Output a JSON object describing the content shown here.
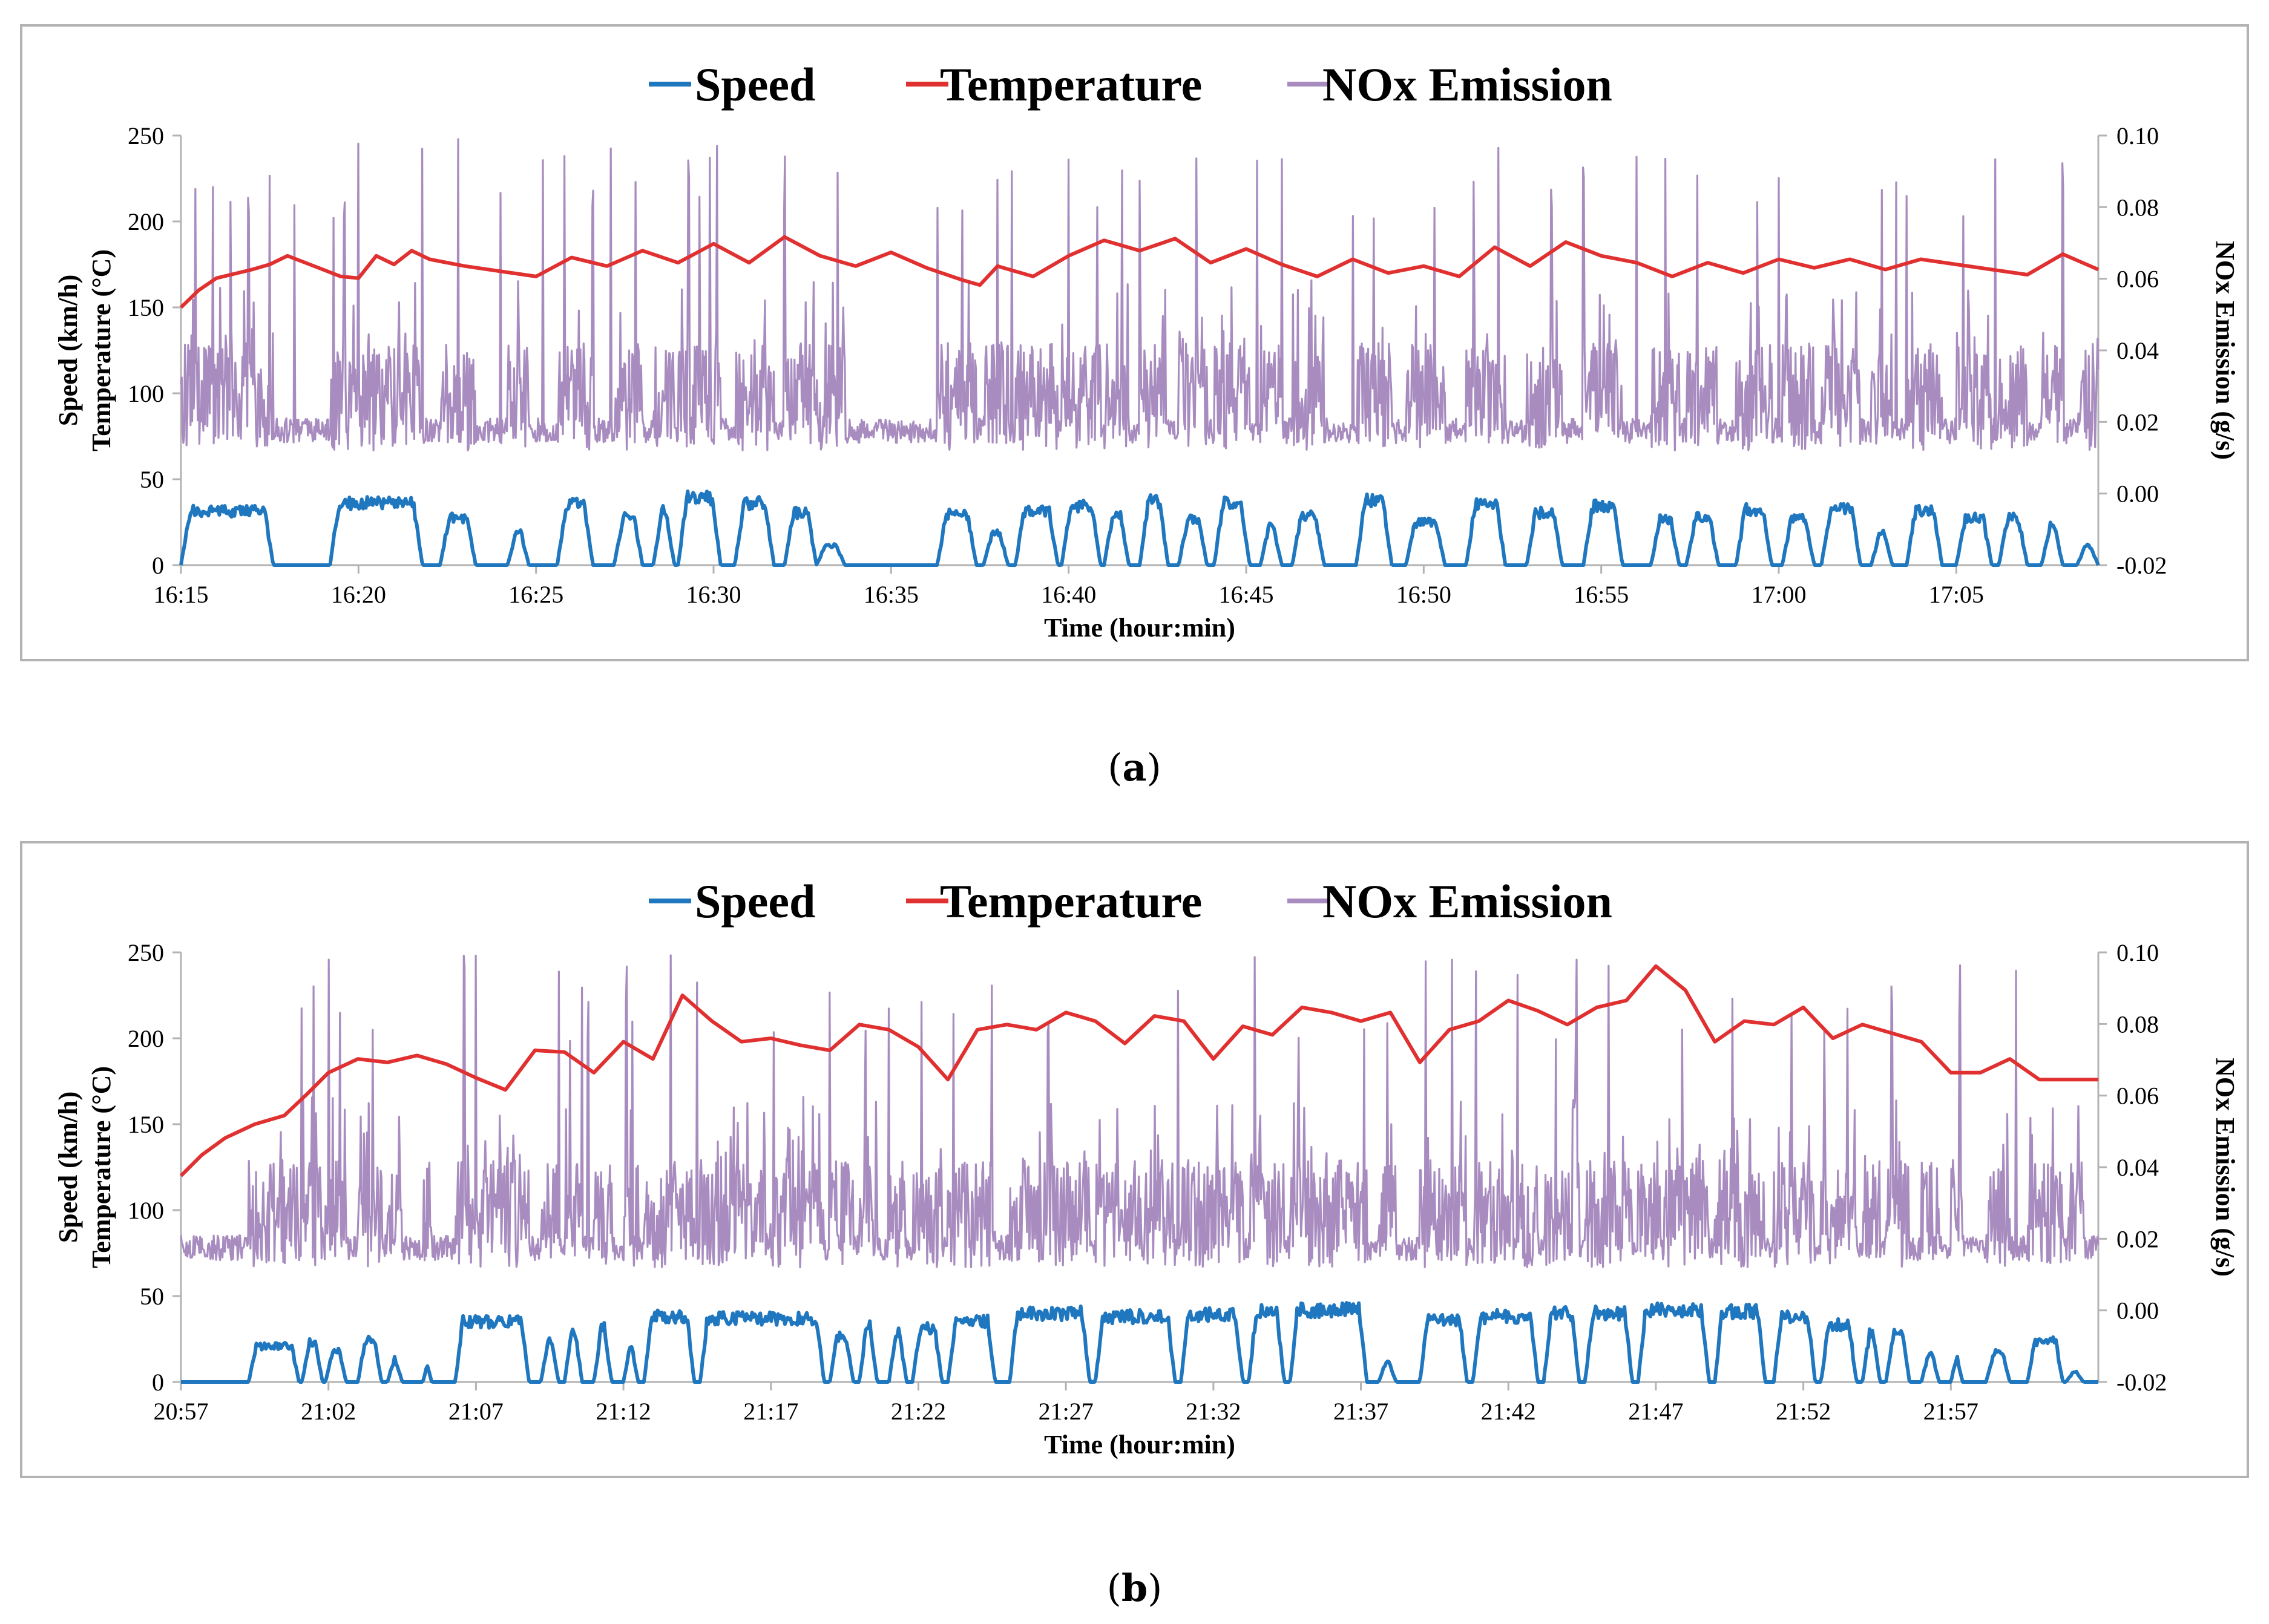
{
  "legend": {
    "speed": "Speed",
    "temperature": "Temperature",
    "nox": "NOx Emission"
  },
  "colors": {
    "speed": "#1f77bf",
    "temperature": "#e03030",
    "nox": "#a88cc0",
    "axis": "#b3b3b3"
  },
  "chart_data": [
    {
      "id": "a",
      "type": "line",
      "caption_letter": "a",
      "xlabel": "Time (hour:min)",
      "ylabel_line1": "Speed  (km/h)",
      "ylabel_line2": "Temperature  (°C)",
      "y2label": "NOx Emission (g/s)",
      "xlim_minutes": [
        0,
        54
      ],
      "ylim": [
        0,
        250
      ],
      "y2lim": [
        -0.02,
        0.1
      ],
      "yticks": [
        "0",
        "50",
        "100",
        "150",
        "200",
        "250"
      ],
      "y2ticks": [
        "-0.02",
        "0.00",
        "0.02",
        "0.04",
        "0.06",
        "0.08",
        "0.10"
      ],
      "xticks": [
        "16:15",
        "16:20",
        "16:25",
        "16:30",
        "16:35",
        "16:40",
        "16:45",
        "16:50",
        "16:55",
        "17:00",
        "17:05"
      ],
      "temperature_series": {
        "name": "Temperature",
        "x_minutes": [
          0,
          0.5,
          1,
          2,
          2.5,
          3,
          4,
          4.5,
          5,
          5.5,
          6,
          6.5,
          7,
          8,
          9,
          10,
          11,
          12,
          13,
          14,
          15,
          16,
          17,
          18,
          19,
          20,
          21,
          22,
          22.5,
          23,
          24,
          25,
          26,
          27,
          28,
          29,
          30,
          31,
          32,
          33,
          34,
          35,
          36,
          37,
          38,
          39,
          40,
          41,
          42,
          43,
          44,
          45,
          46,
          47,
          48,
          49,
          50,
          51,
          52,
          53,
          54
        ],
        "values": [
          150,
          160,
          167,
          172,
          175,
          180,
          172,
          168,
          167,
          180,
          175,
          183,
          178,
          174,
          171,
          168,
          179,
          174,
          183,
          176,
          187,
          176,
          191,
          180,
          174,
          182,
          173,
          166,
          163,
          174,
          168,
          180,
          189,
          183,
          190,
          176,
          184,
          175,
          168,
          178,
          170,
          174,
          168,
          185,
          174,
          188,
          180,
          176,
          168,
          176,
          170,
          178,
          173,
          178,
          172,
          178,
          175,
          172,
          169,
          181,
          172
        ]
      },
      "speed_trips": [
        [
          0,
          2.6,
          33
        ],
        [
          4.2,
          6.8,
          38
        ],
        [
          7.3,
          8.3,
          29
        ],
        [
          9.2,
          9.8,
          22
        ],
        [
          10.6,
          11.6,
          37
        ],
        [
          12.2,
          13.0,
          30
        ],
        [
          13.3,
          13.9,
          33
        ],
        [
          14.0,
          15.2,
          41
        ],
        [
          15.6,
          16.7,
          38
        ],
        [
          17.0,
          17.9,
          32
        ],
        [
          17.9,
          18.7,
          12
        ],
        [
          21.3,
          22.4,
          31
        ],
        [
          22.6,
          23.3,
          20
        ],
        [
          23.5,
          24.7,
          33
        ],
        [
          24.8,
          25.9,
          36
        ],
        [
          26.0,
          26.7,
          32
        ],
        [
          27.0,
          27.8,
          39
        ],
        [
          28.1,
          28.9,
          28
        ],
        [
          29.1,
          30.1,
          38
        ],
        [
          30.4,
          31.0,
          25
        ],
        [
          31.3,
          32.2,
          30
        ],
        [
          33.1,
          34.1,
          40
        ],
        [
          34.5,
          35.6,
          26
        ],
        [
          36.2,
          37.3,
          38
        ],
        [
          37.9,
          38.9,
          32
        ],
        [
          39.5,
          40.6,
          36
        ],
        [
          41.4,
          42.2,
          28
        ],
        [
          42.4,
          43.3,
          29
        ],
        [
          43.8,
          44.8,
          34
        ],
        [
          45.1,
          46.0,
          28
        ],
        [
          46.2,
          47.3,
          34
        ],
        [
          47.6,
          48.2,
          20
        ],
        [
          48.6,
          49.6,
          33
        ],
        [
          50.0,
          51.0,
          29
        ],
        [
          51.2,
          52.0,
          29
        ],
        [
          52.4,
          53.0,
          25
        ],
        [
          53.4,
          54.0,
          12
        ]
      ],
      "nox_high_spikes": [
        0.4,
        0.9,
        1.4,
        1.9,
        2.5,
        3.2,
        4.3,
        4.6,
        5.0,
        6.8,
        7.8,
        9.0,
        10.2,
        10.8,
        11.6,
        12.1,
        12.8,
        14.3,
        14.6,
        14.9,
        15.1,
        17.0,
        18.5,
        21.3,
        22.0,
        23.0,
        23.4,
        25.0,
        25.8,
        26.5,
        27.0,
        28.6,
        30.3,
        31.0,
        33.0,
        33.6,
        35.3,
        36.4,
        37.1,
        38.6,
        39.5,
        41.0,
        41.8,
        42.7,
        44.4,
        45.0,
        47.9,
        48.3,
        48.6,
        50.2,
        51.1,
        53.0
      ]
    },
    {
      "id": "b",
      "type": "line",
      "caption_letter": "b",
      "xlabel": "Time (hour:min)",
      "ylabel_line1": "Speed  (km/h)",
      "ylabel_line2": "Temperature  (°C)",
      "y2label": "NOx Emission (g/s)",
      "xlim_minutes": [
        0,
        65
      ],
      "ylim": [
        0,
        250
      ],
      "y2lim": [
        -0.02,
        0.1
      ],
      "yticks": [
        "0",
        "50",
        "100",
        "150",
        "200",
        "250"
      ],
      "y2ticks": [
        "-0.02",
        "0.00",
        "0.02",
        "0.04",
        "0.06",
        "0.08",
        "0.10"
      ],
      "xticks": [
        "20:57",
        "21:02",
        "21:07",
        "21:12",
        "21:17",
        "21:22",
        "21:27",
        "21:32",
        "21:37",
        "21:42",
        "21:47",
        "21:52",
        "21:57"
      ],
      "temperature_series": {
        "name": "Temperature",
        "x_minutes": [
          0,
          0.7,
          1.5,
          2.5,
          3.5,
          4.3,
          5,
          6,
          7,
          8,
          9,
          10,
          11,
          12,
          13,
          14,
          15,
          16,
          17,
          18,
          19,
          20,
          21,
          22,
          23,
          24,
          25,
          26,
          27,
          28,
          29,
          30,
          31,
          32,
          33,
          34,
          35,
          36,
          37,
          38,
          39,
          40,
          41,
          42,
          43,
          44,
          45,
          46,
          47,
          48,
          49,
          50,
          51,
          52,
          53,
          54,
          55,
          56,
          57,
          58,
          59,
          60,
          61,
          62,
          63,
          64,
          65
        ],
        "values": [
          120,
          132,
          142,
          150,
          155,
          168,
          180,
          188,
          186,
          190,
          185,
          177,
          170,
          193,
          192,
          180,
          198,
          188,
          225,
          210,
          198,
          200,
          196,
          193,
          208,
          205,
          195,
          176,
          205,
          208,
          205,
          215,
          210,
          197,
          213,
          210,
          188,
          207,
          202,
          218,
          215,
          210,
          215,
          186,
          205,
          210,
          222,
          216,
          208,
          218,
          222,
          242,
          228,
          198,
          210,
          208,
          218,
          200,
          208,
          203,
          198,
          180,
          180,
          188,
          176,
          176,
          176
        ]
      },
      "speed_trips": [
        [
          2.3,
          4.0,
          22
        ],
        [
          4.1,
          4.8,
          24
        ],
        [
          4.9,
          5.6,
          20
        ],
        [
          6.0,
          6.8,
          26
        ],
        [
          7.0,
          7.5,
          15
        ],
        [
          8.2,
          8.5,
          18
        ],
        [
          9.3,
          11.8,
          37
        ],
        [
          12.2,
          12.8,
          26
        ],
        [
          13.0,
          13.6,
          32
        ],
        [
          14.0,
          14.6,
          33
        ],
        [
          15.0,
          15.5,
          25
        ],
        [
          15.7,
          17.4,
          40
        ],
        [
          17.6,
          21.8,
          39
        ],
        [
          22.0,
          22.8,
          28
        ],
        [
          23.0,
          23.6,
          36
        ],
        [
          24.0,
          24.6,
          30
        ],
        [
          24.8,
          25.8,
          33
        ],
        [
          26.0,
          27.6,
          37
        ],
        [
          28.1,
          30.8,
          42
        ],
        [
          31.0,
          33.7,
          40
        ],
        [
          33.9,
          36.0,
          41
        ],
        [
          36.2,
          37.4,
          43
        ],
        [
          37.6,
          40.2,
          44
        ],
        [
          40.6,
          41.2,
          12
        ],
        [
          42.0,
          43.6,
          38
        ],
        [
          43.8,
          46.0,
          40
        ],
        [
          46.2,
          47.4,
          42
        ],
        [
          47.6,
          49.2,
          42
        ],
        [
          49.4,
          51.8,
          44
        ],
        [
          52.0,
          53.7,
          43
        ],
        [
          54.0,
          55.4,
          40
        ],
        [
          55.6,
          56.8,
          35
        ],
        [
          57.0,
          57.6,
          30
        ],
        [
          57.8,
          58.6,
          30
        ],
        [
          59.0,
          59.6,
          18
        ],
        [
          60.0,
          60.4,
          20
        ],
        [
          61.2,
          62.0,
          18
        ],
        [
          62.6,
          63.8,
          25
        ],
        [
          63.9,
          64.5,
          6
        ]
      ],
      "nox_high_spikes": [
        4.1,
        4.5,
        5.0,
        5.4,
        6.5,
        9.6,
        10.0,
        12.8,
        13.2,
        13.6,
        13.8,
        15.1,
        15.3,
        16.6,
        17.5,
        20.1,
        22.0,
        23.2,
        24.0,
        25.1,
        26.2,
        27.5,
        29.4,
        33.8,
        36.4,
        37.9,
        40.1,
        40.9,
        42.2,
        43.1,
        43.9,
        45.3,
        46.6,
        47.3,
        48.4,
        50.9,
        52.6,
        54.6,
        55.7,
        56.5,
        58.0,
        60.3,
        62.2
      ]
    }
  ]
}
